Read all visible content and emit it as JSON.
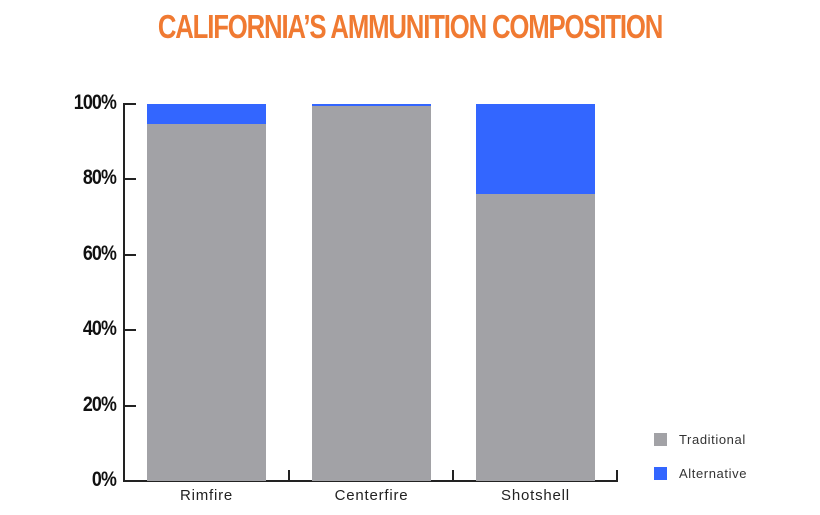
{
  "title": "CALIFORNIA’S AMMUNITION COMPOSITION",
  "colors": {
    "title": "#f07a32",
    "traditional": "#a2a2a6",
    "alternative": "#3366ff"
  },
  "y_ticks": [
    "100%",
    "80%",
    "60%",
    "40%",
    "20%",
    "0%"
  ],
  "legend": [
    {
      "label": "Traditional",
      "color": "#a2a2a6"
    },
    {
      "label": "Alternative",
      "color": "#3366ff"
    }
  ],
  "chart_data": {
    "type": "bar",
    "stacked": true,
    "title": "CALIFORNIA’S AMMUNITION COMPOSITION",
    "xlabel": "",
    "ylabel": "",
    "categories": [
      "Rimfire",
      "Centerfire",
      "Shotshell"
    ],
    "series": [
      {
        "name": "Traditional",
        "color": "#a2a2a6",
        "values": [
          94.7,
          99.5,
          76
        ]
      },
      {
        "name": "Alternative",
        "color": "#3366ff",
        "values": [
          5.3,
          0.5,
          24
        ]
      }
    ],
    "ylim": [
      0,
      100
    ],
    "yticks": [
      0,
      20,
      40,
      60,
      80,
      100
    ],
    "ytick_format": "percent",
    "grid": false,
    "legend_position": "right-bottom"
  }
}
